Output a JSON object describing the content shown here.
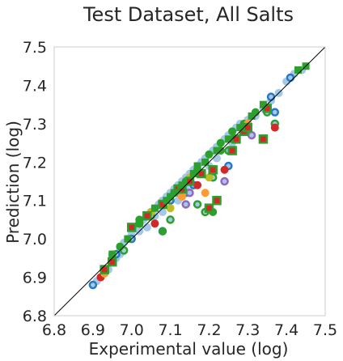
{
  "chart_data": {
    "type": "scatter",
    "title": "Test Dataset, All Salts",
    "xlabel": "Experimental value (log)",
    "ylabel": "Prediction (log)",
    "xlim": [
      6.8,
      7.5
    ],
    "ylim": [
      6.8,
      7.5
    ],
    "xticks": [
      "6.8",
      "6.9",
      "7.0",
      "7.1",
      "7.2",
      "7.3",
      "7.4",
      "7.5"
    ],
    "yticks": [
      "6.8",
      "6.9",
      "7.0",
      "7.1",
      "7.2",
      "7.3",
      "7.4",
      "7.5"
    ],
    "grid": false,
    "reference_line": "y = x",
    "colors": {
      "light-blue": "#a6c8e8",
      "blue": "#2878c8",
      "green": "#2ca02c",
      "red": "#d62728",
      "orange": "#ff9a2e",
      "purple": "#9467bd",
      "olive": "#bcbd22"
    },
    "series": [
      {
        "marker": "circle",
        "color": "light-blue",
        "outline": "none",
        "points": [
          [
            6.9,
            6.88
          ],
          [
            6.91,
            6.89
          ],
          [
            6.92,
            6.9
          ],
          [
            6.93,
            6.91
          ],
          [
            6.94,
            6.92
          ],
          [
            6.95,
            6.94
          ],
          [
            6.96,
            6.95
          ],
          [
            6.97,
            6.97
          ],
          [
            6.98,
            6.99
          ],
          [
            6.99,
            7.0
          ],
          [
            7.0,
            7.01
          ],
          [
            7.0,
            7.02
          ],
          [
            7.01,
            7.03
          ],
          [
            7.02,
            7.04
          ],
          [
            7.03,
            7.05
          ],
          [
            7.04,
            7.06
          ],
          [
            7.05,
            7.07
          ],
          [
            7.06,
            7.08
          ],
          [
            7.07,
            7.09
          ],
          [
            7.08,
            7.1
          ],
          [
            7.09,
            7.11
          ],
          [
            7.1,
            7.12
          ],
          [
            7.11,
            7.13
          ],
          [
            7.12,
            7.14
          ],
          [
            7.13,
            7.15
          ],
          [
            7.14,
            7.16
          ],
          [
            7.15,
            7.17
          ],
          [
            7.16,
            7.18
          ],
          [
            7.17,
            7.19
          ],
          [
            7.18,
            7.2
          ],
          [
            7.19,
            7.21
          ],
          [
            7.2,
            7.22
          ],
          [
            7.21,
            7.23
          ],
          [
            7.22,
            7.24
          ],
          [
            7.23,
            7.25
          ],
          [
            7.24,
            7.26
          ],
          [
            7.25,
            7.27
          ],
          [
            7.26,
            7.28
          ],
          [
            7.27,
            7.29
          ],
          [
            7.28,
            7.3
          ],
          [
            7.3,
            7.31
          ],
          [
            7.32,
            7.32
          ],
          [
            7.34,
            7.34
          ],
          [
            7.36,
            7.36
          ],
          [
            7.38,
            7.38
          ],
          [
            7.4,
            7.41
          ],
          [
            7.42,
            7.43
          ],
          [
            7.44,
            7.44
          ],
          [
            7.02,
            7.02
          ],
          [
            7.06,
            7.06
          ],
          [
            7.1,
            7.1
          ],
          [
            7.14,
            7.13
          ],
          [
            7.18,
            7.17
          ],
          [
            7.12,
            7.1
          ],
          [
            7.16,
            7.14
          ],
          [
            7.2,
            7.19
          ],
          [
            7.08,
            7.07
          ],
          [
            7.04,
            7.03
          ],
          [
            7.22,
            7.21
          ],
          [
            7.26,
            7.25
          ],
          [
            6.97,
            6.96
          ],
          [
            6.95,
            6.96
          ]
        ]
      },
      {
        "marker": "circle",
        "color": "light-blue",
        "outline": "blue",
        "points": [
          [
            6.9,
            6.88
          ],
          [
            6.96,
            6.96
          ],
          [
            7.08,
            7.02
          ],
          [
            7.1,
            7.1
          ],
          [
            7.13,
            7.12
          ],
          [
            7.16,
            7.14
          ],
          [
            7.22,
            7.1
          ],
          [
            7.37,
            7.33
          ],
          [
            7.36,
            7.37
          ],
          [
            7.41,
            7.42
          ],
          [
            7.25,
            7.19
          ],
          [
            7.0,
            7.0
          ]
        ]
      },
      {
        "marker": "circle",
        "color": "light-blue",
        "outline": "green",
        "points": [
          [
            6.98,
            6.97
          ],
          [
            7.05,
            7.06
          ],
          [
            7.1,
            7.05
          ],
          [
            7.17,
            7.09
          ],
          [
            7.19,
            7.07
          ],
          [
            7.21,
            7.16
          ],
          [
            7.25,
            7.23
          ],
          [
            7.35,
            7.33
          ],
          [
            7.37,
            7.3
          ],
          [
            7.02,
            7.04
          ],
          [
            7.14,
            7.12
          ],
          [
            7.29,
            7.28
          ]
        ]
      },
      {
        "marker": "circle",
        "color": "light-blue",
        "outline": "purple",
        "points": [
          [
            7.15,
            7.12
          ],
          [
            7.24,
            7.15
          ],
          [
            7.14,
            7.09
          ],
          [
            7.31,
            7.27
          ]
        ]
      },
      {
        "marker": "circle",
        "color": "green",
        "outline": "none",
        "points": [
          [
            6.97,
            6.98
          ],
          [
            7.0,
            7.03
          ],
          [
            7.02,
            7.05
          ],
          [
            7.05,
            7.07
          ],
          [
            7.08,
            7.09
          ],
          [
            7.11,
            7.12
          ],
          [
            7.14,
            7.15
          ],
          [
            7.17,
            7.18
          ],
          [
            7.2,
            7.22
          ],
          [
            7.23,
            7.25
          ],
          [
            7.26,
            7.28
          ],
          [
            7.29,
            7.3
          ],
          [
            7.32,
            7.33
          ],
          [
            7.21,
            7.07
          ],
          [
            7.23,
            7.23
          ],
          [
            7.08,
            7.02
          ],
          [
            6.93,
            6.92
          ]
        ]
      },
      {
        "marker": "circle",
        "color": "red",
        "outline": "none",
        "points": [
          [
            6.92,
            6.9
          ],
          [
            7.17,
            7.14
          ],
          [
            7.37,
            7.29
          ],
          [
            7.24,
            7.18
          ],
          [
            7.06,
            7.04
          ]
        ]
      },
      {
        "marker": "circle",
        "color": "orange",
        "outline": "none",
        "points": [
          [
            6.93,
            6.91
          ],
          [
            7.19,
            7.12
          ],
          [
            7.3,
            7.3
          ],
          [
            7.13,
            7.11
          ]
        ]
      },
      {
        "marker": "circle",
        "color": "olive",
        "outline": "none",
        "points": [
          [
            7.05,
            7.07
          ],
          [
            7.1,
            7.08
          ],
          [
            7.2,
            7.16
          ],
          [
            7.15,
            7.16
          ]
        ]
      },
      {
        "marker": "square",
        "color": "red",
        "outline": "green",
        "points": [
          [
            6.93,
            6.92
          ],
          [
            6.95,
            6.94
          ],
          [
            7.0,
            7.03
          ],
          [
            7.04,
            7.06
          ],
          [
            7.08,
            7.09
          ],
          [
            7.12,
            7.13
          ],
          [
            7.15,
            7.15
          ],
          [
            7.18,
            7.17
          ],
          [
            7.21,
            7.18
          ],
          [
            7.22,
            7.1
          ],
          [
            7.2,
            7.08
          ],
          [
            7.26,
            7.23
          ],
          [
            7.29,
            7.28
          ],
          [
            7.3,
            7.29
          ],
          [
            7.34,
            7.26
          ],
          [
            7.35,
            7.34
          ],
          [
            7.27,
            7.26
          ],
          [
            7.13,
            7.13
          ]
        ]
      },
      {
        "marker": "square",
        "color": "green",
        "outline": "none",
        "points": [
          [
            6.95,
            6.96
          ],
          [
            6.99,
            7.0
          ],
          [
            7.02,
            7.04
          ],
          [
            7.06,
            7.08
          ],
          [
            7.1,
            7.11
          ],
          [
            7.13,
            7.14
          ],
          [
            7.16,
            7.17
          ],
          [
            7.19,
            7.2
          ],
          [
            7.22,
            7.23
          ],
          [
            7.25,
            7.26
          ],
          [
            7.28,
            7.29
          ],
          [
            7.31,
            7.32
          ],
          [
            7.34,
            7.35
          ],
          [
            7.43,
            7.44
          ],
          [
            7.45,
            7.45
          ],
          [
            7.11,
            7.12
          ],
          [
            7.09,
            7.1
          ],
          [
            7.17,
            7.19
          ]
        ]
      }
    ]
  }
}
